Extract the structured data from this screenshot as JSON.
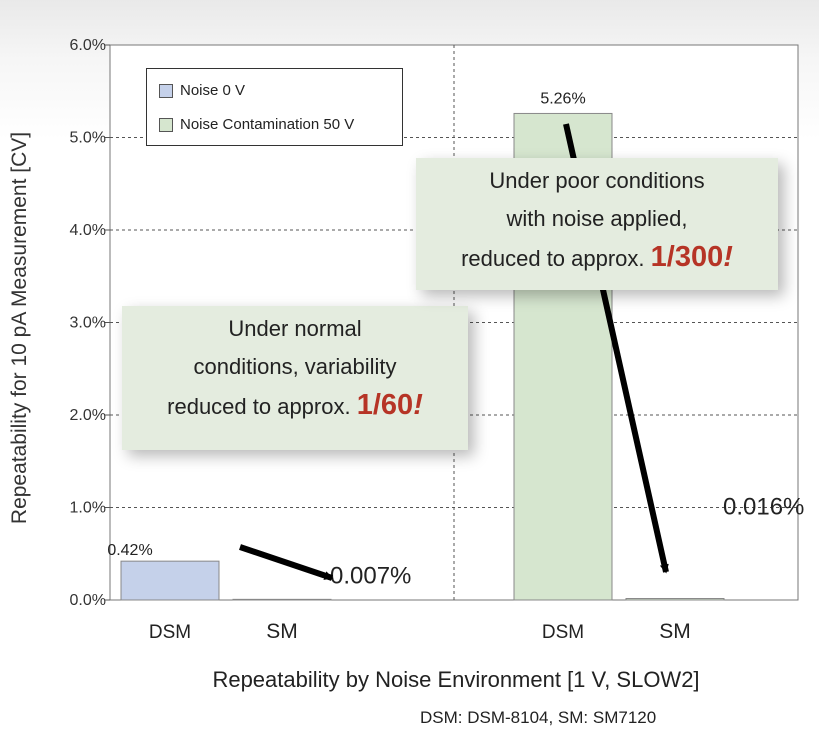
{
  "chart_data": {
    "type": "bar",
    "title": "",
    "xlabel": "Repeatability by Noise Environment [1 V, SLOW2]",
    "ylabel": "Repeatability for 10 pA Measurement [CV]",
    "ylim": [
      0,
      6
    ],
    "yticks": [
      "0.0%",
      "1.0%",
      "2.0%",
      "3.0%",
      "4.0%",
      "5.0%",
      "6.0%"
    ],
    "grid": true,
    "legend_position": "top-left",
    "groups": [
      "Noise 0 V",
      "Noise Contamination 50 V"
    ],
    "categories": [
      "DSM",
      "SM"
    ],
    "series": [
      {
        "name": "Noise 0 V",
        "color": "#c5d1ea",
        "values": [
          0.42,
          0.007
        ],
        "labels": [
          "0.42%",
          "0.007%"
        ]
      },
      {
        "name": "Noise Contamination 50 V",
        "color": "#d6e6cf",
        "values": [
          5.26,
          0.016
        ],
        "labels": [
          "5.26%",
          "0.016%"
        ]
      }
    ],
    "annotations": {
      "normal": {
        "lines": [
          "Under normal",
          "conditions, variability",
          "reduced to approx."
        ],
        "ratio": "1/60",
        "bang": "!"
      },
      "noisy": {
        "lines": [
          "Under poor conditions",
          "with noise applied,",
          "reduced to approx."
        ],
        "ratio": "1/300",
        "bang": "!"
      }
    },
    "source_note": "DSM: DSM-8104, SM: SM7120"
  }
}
